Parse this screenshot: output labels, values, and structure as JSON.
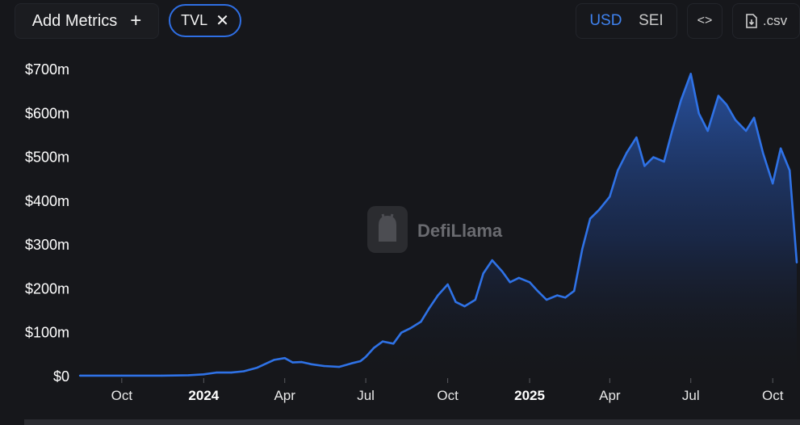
{
  "toolbar": {
    "add_metrics_label": "Add Metrics",
    "add_icon": "plus-icon",
    "metric_chip": "TVL",
    "close_icon": "close-icon",
    "denominations": [
      "USD",
      "SEI"
    ],
    "active_denomination": "USD",
    "embed_icon": "code-icon",
    "csv_label": ".csv",
    "csv_icon": "download-file-icon"
  },
  "watermark": {
    "text": "DefiLlama",
    "icon": "llama-logo-icon"
  },
  "colors": {
    "line": "#2f72e6",
    "background": "#16171b",
    "accent": "#3f82ef"
  },
  "chart_data": {
    "type": "area",
    "title": "",
    "xlabel": "",
    "ylabel": "",
    "ylim": [
      0,
      700
    ],
    "y_unit": "millions USD",
    "y_ticks": [
      0,
      100,
      200,
      300,
      400,
      500,
      600,
      700
    ],
    "y_tick_labels": [
      "$0",
      "$100m",
      "$200m",
      "$300m",
      "$400m",
      "$500m",
      "$600m",
      "$700m"
    ],
    "x_ticks": [
      "2023-10-01",
      "2024-01-01",
      "2024-04-01",
      "2024-07-01",
      "2024-10-01",
      "2025-01-01",
      "2025-04-01",
      "2025-07-01",
      "2025-10-01"
    ],
    "x_tick_labels": [
      "Oct",
      "2024",
      "Apr",
      "Jul",
      "Oct",
      "2025",
      "Apr",
      "Jul",
      "Oct"
    ],
    "x_tick_bold": [
      false,
      true,
      false,
      false,
      false,
      true,
      false,
      false,
      false
    ],
    "grid": false,
    "legend": "none",
    "series": [
      {
        "x": [
          "2023-08-15",
          "2023-10-01",
          "2023-11-15",
          "2023-12-15",
          "2024-01-01",
          "2024-01-15",
          "2024-02-01",
          "2024-02-15",
          "2024-03-01",
          "2024-03-20",
          "2024-04-01",
          "2024-04-10",
          "2024-04-20",
          "2024-05-01",
          "2024-05-15",
          "2024-06-01",
          "2024-06-15",
          "2024-06-25",
          "2024-07-01",
          "2024-07-10",
          "2024-07-20",
          "2024-08-01",
          "2024-08-10",
          "2024-08-20",
          "2024-09-01",
          "2024-09-10",
          "2024-09-20",
          "2024-10-01",
          "2024-10-10",
          "2024-10-20",
          "2024-11-01",
          "2024-11-10",
          "2024-11-20",
          "2024-12-01",
          "2024-12-10",
          "2024-12-20",
          "2025-01-01",
          "2025-01-10",
          "2025-01-20",
          "2025-02-01",
          "2025-02-10",
          "2025-02-20",
          "2025-03-01",
          "2025-03-10",
          "2025-03-20",
          "2025-04-01",
          "2025-04-10",
          "2025-04-20",
          "2025-05-01",
          "2025-05-10",
          "2025-05-20",
          "2025-06-01",
          "2025-06-10",
          "2025-06-20",
          "2025-07-01",
          "2025-07-10",
          "2025-07-20",
          "2025-08-01",
          "2025-08-10",
          "2025-08-20",
          "2025-09-01",
          "2025-09-10",
          "2025-09-20",
          "2025-10-01",
          "2025-10-10",
          "2025-10-20",
          "2025-10-28"
        ],
        "values": [
          2,
          2,
          2,
          3,
          5,
          9,
          9,
          12,
          20,
          38,
          42,
          32,
          33,
          28,
          24,
          22,
          30,
          35,
          45,
          65,
          80,
          75,
          100,
          110,
          125,
          155,
          185,
          210,
          170,
          160,
          175,
          235,
          265,
          240,
          215,
          225,
          215,
          195,
          175,
          185,
          180,
          195,
          290,
          360,
          380,
          410,
          470,
          510,
          545,
          480,
          500,
          490,
          560,
          630,
          690,
          600,
          560,
          640,
          620,
          585,
          560,
          590,
          510,
          440,
          520,
          470,
          260
        ]
      }
    ]
  }
}
